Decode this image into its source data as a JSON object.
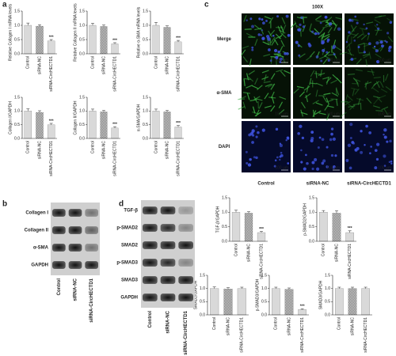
{
  "panel_labels": [
    "a",
    "b",
    "c",
    "d"
  ],
  "microscopy": {
    "title": "100X",
    "rows": [
      "Merge",
      "α-SMA",
      "DAPI"
    ],
    "columns": [
      "Control",
      "siRNA-NC",
      "siRNA-CircHECTD1"
    ],
    "scale_bar": "100 μm"
  },
  "blot_b": {
    "rows": [
      "Collagen I",
      "Collagen II",
      "α-SMA",
      "GAPDH"
    ],
    "columns": [
      "Control",
      "siRNA-NC",
      "siRNA-CircHECTD1"
    ]
  },
  "blot_d": {
    "rows": [
      "TGF-β",
      "p-SMAD2",
      "SMAD2",
      "p-SMAD3",
      "SMAD3",
      "GAPDH"
    ],
    "columns": [
      "Control",
      "siRNA-NC",
      "siRNA-CircHECTD1"
    ]
  },
  "chart_data": [
    {
      "type": "bar",
      "ylabel": "Relative Collagen I mRNA levels",
      "categories": [
        "Control",
        "siRNA-NC",
        "siRNA-CircHECTD1"
      ],
      "values": [
        1.0,
        0.97,
        0.45
      ],
      "errors": [
        0.08,
        0.05,
        0.05
      ],
      "annotations": [
        null,
        null,
        "***"
      ],
      "colors": [
        "#d9d9d9",
        "#d9d9d9",
        "#d9d9d9"
      ],
      "hatch": [
        false,
        true,
        false
      ],
      "ylim": [
        0,
        1.5
      ],
      "yticks": [
        {
          "value": 0,
          "label": "0.0"
        },
        {
          "value": 0.5,
          "label": "0.5"
        },
        {
          "value": 1,
          "label": "1.0"
        },
        {
          "value": 1.5,
          "label": "1.5"
        }
      ]
    },
    {
      "type": "bar",
      "ylabel": "Relative Collagen II mRNA levels",
      "categories": [
        "Control",
        "siRNA-NC",
        "siRNA-CircHECTD1"
      ],
      "values": [
        1.0,
        0.96,
        0.35
      ],
      "errors": [
        0.07,
        0.05,
        0.04
      ],
      "annotations": [
        null,
        null,
        "***"
      ],
      "colors": [
        "#d9d9d9",
        "#d9d9d9",
        "#d9d9d9"
      ],
      "hatch": [
        false,
        true,
        false
      ],
      "ylim": [
        0,
        1.5
      ],
      "yticks": [
        {
          "value": 0,
          "label": "0.0"
        },
        {
          "value": 0.5,
          "label": "0.5"
        },
        {
          "value": 1,
          "label": "1.0"
        },
        {
          "value": 1.5,
          "label": "1.5"
        }
      ]
    },
    {
      "type": "bar",
      "ylabel": "Relative α-SMA mRNA levels",
      "categories": [
        "Control",
        "siRNA-NC",
        "siRNA-CircHECTD1"
      ],
      "values": [
        1.0,
        0.93,
        0.42
      ],
      "errors": [
        0.1,
        0.05,
        0.05
      ],
      "annotations": [
        null,
        null,
        "***"
      ],
      "colors": [
        "#d9d9d9",
        "#d9d9d9",
        "#d9d9d9"
      ],
      "hatch": [
        false,
        true,
        false
      ],
      "ylim": [
        0,
        1.5
      ],
      "yticks": [
        {
          "value": 0,
          "label": "0.0"
        },
        {
          "value": 0.5,
          "label": "0.5"
        },
        {
          "value": 1,
          "label": "1.0"
        },
        {
          "value": 1.5,
          "label": "1.5"
        }
      ]
    },
    {
      "type": "bar",
      "ylabel": "Collagen I/GAPDH",
      "categories": [
        "Control",
        "siRNA-NC",
        "siRNA-CircHECTD1"
      ],
      "values": [
        1.0,
        0.95,
        0.5
      ],
      "errors": [
        0.08,
        0.06,
        0.05
      ],
      "annotations": [
        null,
        null,
        "***"
      ],
      "colors": [
        "#d9d9d9",
        "#d9d9d9",
        "#d9d9d9"
      ],
      "hatch": [
        false,
        true,
        false
      ],
      "ylim": [
        0,
        1.5
      ],
      "yticks": [
        {
          "value": 0,
          "label": "0.0"
        },
        {
          "value": 0.5,
          "label": "0.5"
        },
        {
          "value": 1,
          "label": "1.0"
        },
        {
          "value": 1.5,
          "label": "1.5"
        }
      ]
    },
    {
      "type": "bar",
      "ylabel": "Collagen II/GAPDH",
      "categories": [
        "Control",
        "siRNA-NC",
        "siRNA-CircHECTD1"
      ],
      "values": [
        1.0,
        0.97,
        0.38
      ],
      "errors": [
        0.07,
        0.05,
        0.05
      ],
      "annotations": [
        null,
        null,
        "***"
      ],
      "colors": [
        "#d9d9d9",
        "#d9d9d9",
        "#d9d9d9"
      ],
      "hatch": [
        false,
        true,
        false
      ],
      "ylim": [
        0,
        1.5
      ],
      "yticks": [
        {
          "value": 0,
          "label": "0.0"
        },
        {
          "value": 0.5,
          "label": "0.5"
        },
        {
          "value": 1,
          "label": "1.0"
        },
        {
          "value": 1.5,
          "label": "1.5"
        }
      ]
    },
    {
      "type": "bar",
      "ylabel": "α-SMA/GAPDH",
      "categories": [
        "Control",
        "siRNA-NC",
        "siRNA-CircHECTD1"
      ],
      "values": [
        1.0,
        0.97,
        0.42
      ],
      "errors": [
        0.07,
        0.05,
        0.05
      ],
      "annotations": [
        null,
        null,
        "***"
      ],
      "colors": [
        "#d9d9d9",
        "#d9d9d9",
        "#d9d9d9"
      ],
      "hatch": [
        false,
        true,
        false
      ],
      "ylim": [
        0,
        1.5
      ],
      "yticks": [
        {
          "value": 0,
          "label": "0.0"
        },
        {
          "value": 0.5,
          "label": "0.5"
        },
        {
          "value": 1,
          "label": "1.0"
        },
        {
          "value": 1.5,
          "label": "1.5"
        }
      ]
    },
    {
      "type": "bar",
      "ylabel": "TGF-β/GAPDH",
      "categories": [
        "Control",
        "siRNA-NC",
        "siRNA-CircHECTD1"
      ],
      "values": [
        1.0,
        0.97,
        0.3
      ],
      "errors": [
        0.07,
        0.05,
        0.04
      ],
      "annotations": [
        null,
        null,
        "***"
      ],
      "colors": [
        "#d9d9d9",
        "#d9d9d9",
        "#d9d9d9"
      ],
      "hatch": [
        false,
        true,
        false
      ],
      "ylim": [
        0,
        1.5
      ],
      "yticks": [
        {
          "value": 0,
          "label": "0.0"
        },
        {
          "value": 0.5,
          "label": "0.5"
        },
        {
          "value": 1,
          "label": "1.0"
        },
        {
          "value": 1.5,
          "label": "1.5"
        }
      ]
    },
    {
      "type": "bar",
      "ylabel": "p-SMAD2/GAPDH",
      "categories": [
        "Control",
        "siRNA-NC",
        "siRNA-CircHECTD1"
      ],
      "values": [
        1.0,
        0.97,
        0.3
      ],
      "errors": [
        0.06,
        0.08,
        0.06
      ],
      "annotations": [
        null,
        null,
        "***"
      ],
      "colors": [
        "#d9d9d9",
        "#d9d9d9",
        "#d9d9d9"
      ],
      "hatch": [
        false,
        true,
        false
      ],
      "ylim": [
        0,
        1.5
      ],
      "yticks": [
        {
          "value": 0,
          "label": "0.0"
        },
        {
          "value": 0.5,
          "label": "0.5"
        },
        {
          "value": 1,
          "label": "1.0"
        },
        {
          "value": 1.5,
          "label": "1.5"
        }
      ]
    },
    {
      "type": "bar",
      "ylabel": "SMAD2/GAPDH",
      "categories": [
        "Control",
        "siRNA-NC",
        "siRNA-CircHECTD1"
      ],
      "values": [
        1.0,
        0.98,
        1.0
      ],
      "errors": [
        0.06,
        0.05,
        0.05
      ],
      "colors": [
        "#d9d9d9",
        "#d9d9d9",
        "#d9d9d9"
      ],
      "hatch": [
        false,
        true,
        false
      ],
      "ylim": [
        0,
        1.5
      ],
      "yticks": [
        {
          "value": 0,
          "label": "0.0"
        },
        {
          "value": 0.5,
          "label": "0.5"
        },
        {
          "value": 1,
          "label": "1.0"
        },
        {
          "value": 1.5,
          "label": "1.5"
        }
      ]
    },
    {
      "type": "bar",
      "ylabel": "p-SMAD3/GAPDH",
      "categories": [
        "Control",
        "siRNA-NC",
        "siRNA-CircHECTD1"
      ],
      "values": [
        1.0,
        0.97,
        0.2
      ],
      "errors": [
        0.05,
        0.05,
        0.03
      ],
      "annotations": [
        null,
        null,
        "***"
      ],
      "colors": [
        "#d9d9d9",
        "#d9d9d9",
        "#d9d9d9"
      ],
      "hatch": [
        false,
        true,
        false
      ],
      "ylim": [
        0,
        1.5
      ],
      "yticks": [
        {
          "value": 0,
          "label": "0.0"
        },
        {
          "value": 0.5,
          "label": "0.5"
        },
        {
          "value": 1,
          "label": "1.0"
        },
        {
          "value": 1.5,
          "label": "1.5"
        }
      ]
    },
    {
      "type": "bar",
      "ylabel": "SMAD3/GAPDH",
      "categories": [
        "Control",
        "siRNA-NC",
        "siRNA-CircHECTD1"
      ],
      "values": [
        1.0,
        1.0,
        1.0
      ],
      "errors": [
        0.05,
        0.05,
        0.05
      ],
      "colors": [
        "#d9d9d9",
        "#d9d9d9",
        "#d9d9d9"
      ],
      "hatch": [
        false,
        true,
        false
      ],
      "ylim": [
        0,
        1.5
      ],
      "yticks": [
        {
          "value": 0,
          "label": "0.0"
        },
        {
          "value": 0.5,
          "label": "0.5"
        },
        {
          "value": 1,
          "label": "1.0"
        },
        {
          "value": 1.5,
          "label": "1.5"
        }
      ]
    }
  ]
}
